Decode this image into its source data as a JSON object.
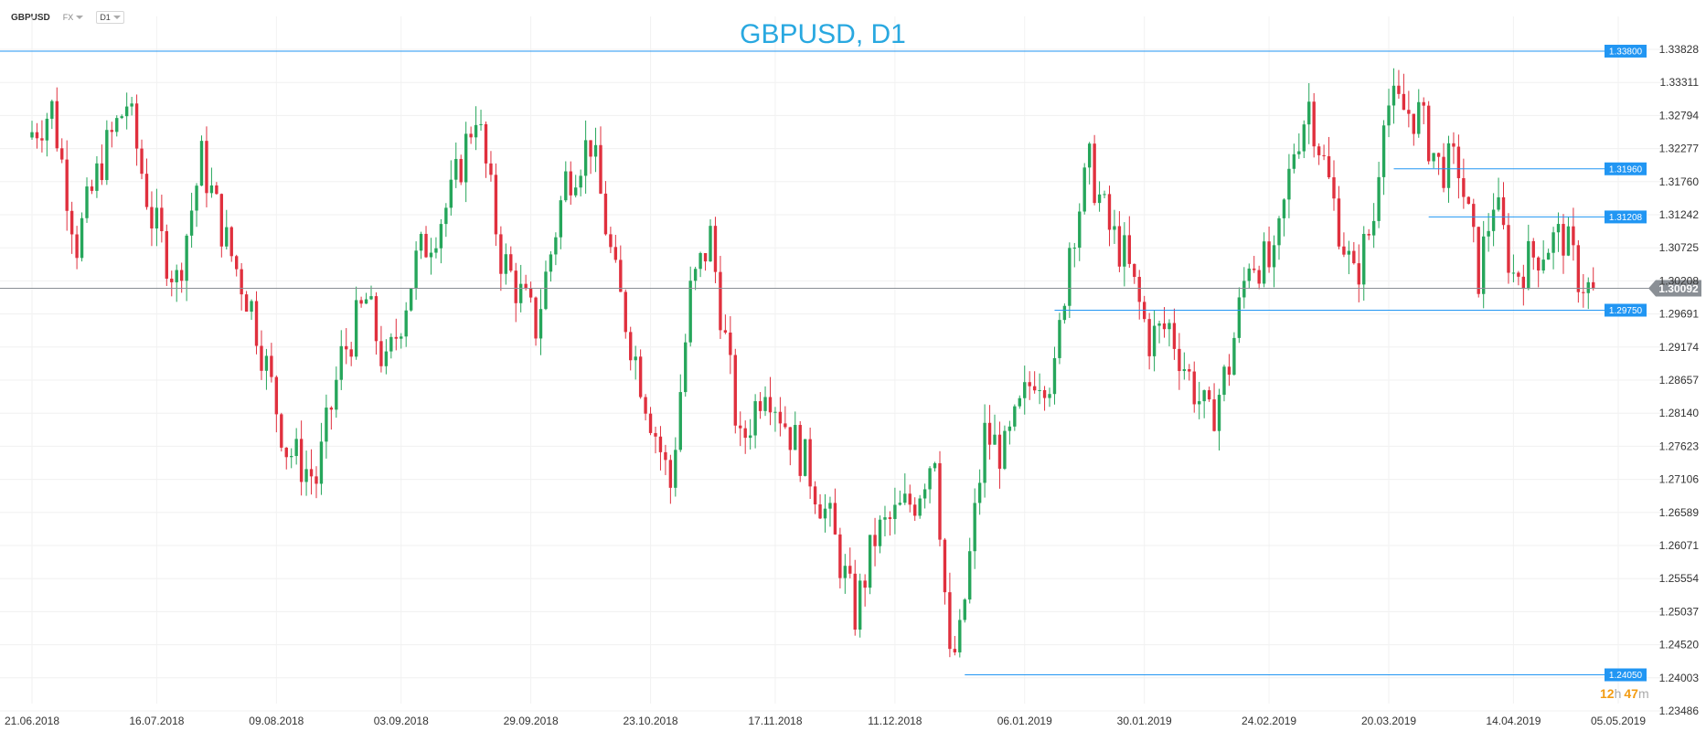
{
  "toolbar": {
    "symbol": "GBPUSD",
    "market": "FX",
    "timeframe": "D1"
  },
  "chart_data": {
    "type": "candlestick",
    "title": "GBPUSD, D1",
    "price_axis_ticks": [
      "1.33828",
      "1.33311",
      "1.32794",
      "1.32277",
      "1.31760",
      "1.31242",
      "1.30725",
      "1.30208",
      "1.29691",
      "1.29174",
      "1.28657",
      "1.28140",
      "1.27623",
      "1.27106",
      "1.26589",
      "1.26071",
      "1.25554",
      "1.25037",
      "1.24520",
      "1.24003",
      "1.23486"
    ],
    "date_axis_ticks": [
      {
        "label": "21.06.2018",
        "day": 0
      },
      {
        "label": "16.07.2018",
        "day": 25
      },
      {
        "label": "09.08.2018",
        "day": 49
      },
      {
        "label": "03.09.2018",
        "day": 74
      },
      {
        "label": "29.09.2018",
        "day": 100
      },
      {
        "label": "23.10.2018",
        "day": 124
      },
      {
        "label": "17.11.2018",
        "day": 149
      },
      {
        "label": "11.12.2018",
        "day": 173
      },
      {
        "label": "06.01.2019",
        "day": 199
      },
      {
        "label": "30.01.2019",
        "day": 223
      },
      {
        "label": "24.02.2019",
        "day": 248
      },
      {
        "label": "20.03.2019",
        "day": 272
      },
      {
        "label": "14.04.2019",
        "day": 297
      },
      {
        "label": "05.05.2019",
        "day": 318
      }
    ],
    "horizontal_levels": [
      {
        "label": "1.33800",
        "value": 1.338,
        "from_day": -10,
        "color": "#2196f3"
      },
      {
        "label": "1.31960",
        "value": 1.3196,
        "from_day": 273,
        "color": "#2196f3"
      },
      {
        "label": "1.31208",
        "value": 1.31208,
        "from_day": 280,
        "color": "#2196f3"
      },
      {
        "label": "1.29750",
        "value": 1.2975,
        "from_day": 205,
        "color": "#2196f3"
      },
      {
        "label": "1.24050",
        "value": 1.2405,
        "from_day": 187,
        "color": "#2196f3"
      }
    ],
    "current_price": {
      "label": "1.30092",
      "value": 1.30092
    },
    "countdown": {
      "hours": "12",
      "h_unit": "h",
      "minutes": "47",
      "m_unit": "m"
    },
    "candle_colors": {
      "up": "#26a65b",
      "down": "#e0303e"
    },
    "price_path": [
      [
        0,
        1.3245
      ],
      [
        5,
        1.329
      ],
      [
        10,
        1.308
      ],
      [
        15,
        1.321
      ],
      [
        20,
        1.33
      ],
      [
        25,
        1.312
      ],
      [
        30,
        1.302
      ],
      [
        35,
        1.321
      ],
      [
        40,
        1.308
      ],
      [
        45,
        1.298
      ],
      [
        52,
        1.276
      ],
      [
        58,
        1.271
      ],
      [
        63,
        1.29
      ],
      [
        68,
        1.299
      ],
      [
        72,
        1.288
      ],
      [
        78,
        1.305
      ],
      [
        85,
        1.315
      ],
      [
        90,
        1.329
      ],
      [
        95,
        1.306
      ],
      [
        102,
        1.295
      ],
      [
        108,
        1.318
      ],
      [
        113,
        1.324
      ],
      [
        118,
        1.302
      ],
      [
        124,
        1.284
      ],
      [
        129,
        1.27
      ],
      [
        133,
        1.3
      ],
      [
        137,
        1.309
      ],
      [
        143,
        1.276
      ],
      [
        148,
        1.287
      ],
      [
        152,
        1.28
      ],
      [
        157,
        1.272
      ],
      [
        161,
        1.264
      ],
      [
        166,
        1.25
      ],
      [
        170,
        1.262
      ],
      [
        175,
        1.266
      ],
      [
        178,
        1.268
      ],
      [
        182,
        1.276
      ],
      [
        185,
        1.242
      ],
      [
        187,
        1.246
      ],
      [
        192,
        1.278
      ],
      [
        196,
        1.275
      ],
      [
        202,
        1.288
      ],
      [
        206,
        1.287
      ],
      [
        209,
        1.308
      ],
      [
        213,
        1.32
      ],
      [
        217,
        1.31
      ],
      [
        220,
        1.306
      ],
      [
        225,
        1.293
      ],
      [
        229,
        1.295
      ],
      [
        233,
        1.287
      ],
      [
        237,
        1.28
      ],
      [
        241,
        1.289
      ],
      [
        245,
        1.306
      ],
      [
        250,
        1.304
      ],
      [
        254,
        1.323
      ],
      [
        257,
        1.33
      ],
      [
        262,
        1.314
      ],
      [
        266,
        1.302
      ],
      [
        270,
        1.312
      ],
      [
        272,
        1.33
      ],
      [
        275,
        1.329
      ],
      [
        279,
        1.328
      ],
      [
        283,
        1.32
      ],
      [
        287,
        1.32
      ],
      [
        291,
        1.303
      ],
      [
        294,
        1.315
      ],
      [
        298,
        1.303
      ],
      [
        302,
        1.306
      ],
      [
        305,
        1.308
      ],
      [
        308,
        1.309
      ],
      [
        311,
        1.303
      ],
      [
        313,
        1.3009
      ]
    ]
  }
}
